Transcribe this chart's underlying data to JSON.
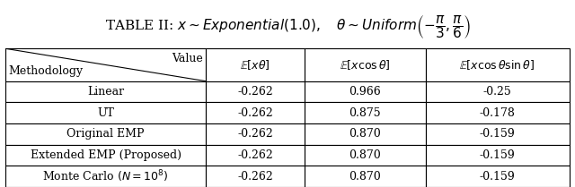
{
  "title_plain": "TABLE II: ",
  "title_math": "$x \\sim Exponential(1.0), \\quad \\theta \\sim Uniform\\left(-\\frac{\\pi}{3}, \\frac{\\pi}{6}\\right)$",
  "col_headers": [
    "$\\mathbb{E}[x\\theta]$",
    "$\\mathbb{E}[x\\cos\\theta]$",
    "$\\mathbb{E}[x\\cos\\theta\\sin\\theta]$"
  ],
  "row_headers": [
    "Linear",
    "UT",
    "Original EMP",
    "Extended EMP (Proposed)",
    "Monte Carlo $(N = 10^8)$"
  ],
  "data": [
    [
      "-0.262",
      "0.966",
      "-0.25"
    ],
    [
      "-0.262",
      "0.875",
      "-0.178"
    ],
    [
      "-0.262",
      "0.870",
      "-0.159"
    ],
    [
      "-0.262",
      "0.870",
      "-0.159"
    ],
    [
      "-0.262",
      "0.870",
      "-0.159"
    ]
  ],
  "header_top_right": "Value",
  "header_bottom_left": "Methodology",
  "figsize": [
    6.4,
    2.09
  ],
  "dpi": 100,
  "title_fontsize": 11,
  "table_fontsize": 9
}
